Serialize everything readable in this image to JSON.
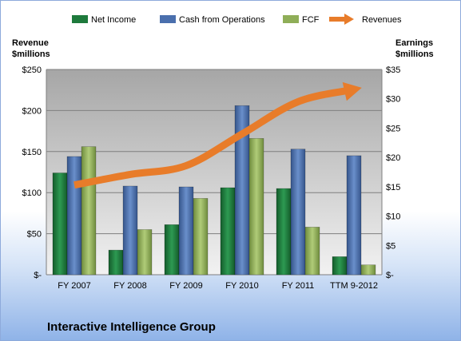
{
  "chart_data": {
    "type": "bar",
    "title": "Interactive Intelligence Group",
    "categories": [
      "FY 2007",
      "FY 2008",
      "FY 2009",
      "FY 2010",
      "FY 2011",
      "TTM 9-2012"
    ],
    "left_axis": {
      "title_line1": "Revenue",
      "title_line2": "$millions",
      "ylim": [
        0,
        250
      ],
      "ticks": [
        0,
        50,
        100,
        150,
        200,
        250
      ],
      "tick_labels": [
        "$-",
        "$50",
        "$100",
        "$150",
        "$200",
        "$250"
      ]
    },
    "right_axis": {
      "title_line1": "Earnings",
      "title_line2": "$millions",
      "ylim": [
        0,
        35
      ],
      "ticks": [
        0,
        5,
        10,
        15,
        20,
        25,
        30,
        35
      ],
      "tick_labels": [
        "$-",
        "$5",
        "$10",
        "$15",
        "$20",
        "$25",
        "$30",
        "$35"
      ]
    },
    "series": [
      {
        "name": "Net Income",
        "type": "bar",
        "axis": "left",
        "color": "#1e7a3c",
        "values": [
          124,
          30,
          61,
          106,
          105,
          22
        ]
      },
      {
        "name": "Cash from Operations",
        "type": "bar",
        "axis": "left",
        "color": "#4a6fad",
        "values": [
          144,
          108,
          107,
          206,
          153,
          145
        ]
      },
      {
        "name": "FCF",
        "type": "bar",
        "axis": "left",
        "color": "#8fae58",
        "values": [
          156,
          55,
          93,
          166,
          58,
          12
        ]
      },
      {
        "name": "Revenues",
        "type": "line",
        "axis": "right",
        "color": "#e87c2a",
        "values": [
          15.3,
          17.1,
          18.6,
          24.0,
          29.5,
          31.6
        ]
      }
    ],
    "legend_position": "top",
    "grid": true
  }
}
